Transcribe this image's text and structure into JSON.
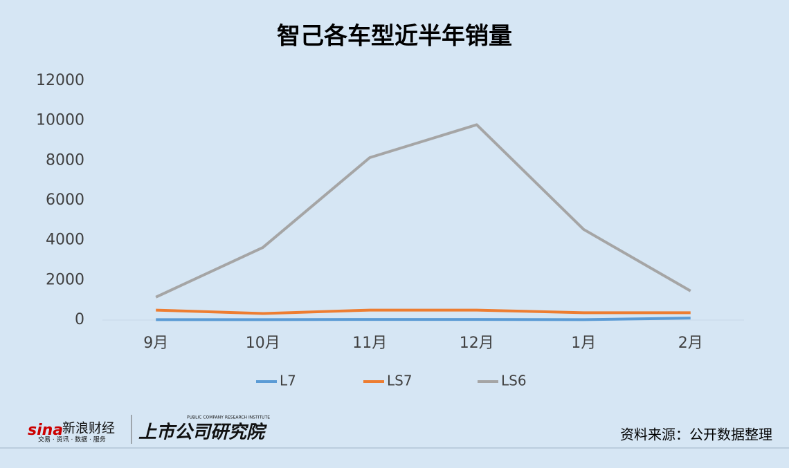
{
  "chart_data": {
    "type": "line",
    "title": "智己各车型近半年销量",
    "categories": [
      "9月",
      "10月",
      "11月",
      "12月",
      "1月",
      "2月"
    ],
    "series": [
      {
        "name": "L7",
        "color": "#5b9bd5",
        "values": [
          20,
          20,
          30,
          30,
          20,
          100
        ]
      },
      {
        "name": "LS7",
        "color": "#ed7d31",
        "values": [
          500,
          330,
          500,
          500,
          370,
          370
        ]
      },
      {
        "name": "LS6",
        "color": "#a5a5a5",
        "values": [
          1150,
          3640,
          8150,
          9800,
          4550,
          1460
        ]
      }
    ],
    "ylim": [
      0,
      12000
    ],
    "yticks": [
      0,
      2000,
      4000,
      6000,
      8000,
      10000,
      12000
    ],
    "grid": false,
    "legend": "bottom",
    "source": "资料来源：公开数据整理"
  },
  "branding": {
    "sina": "sina",
    "sina_name": "新浪财经",
    "sina_slogan": "交易 · 资讯 · 数据 · 服务",
    "institute": "上市公司研究院",
    "institute_en": "PUBLIC COMPANY RESEARCH INSTITUTE"
  }
}
